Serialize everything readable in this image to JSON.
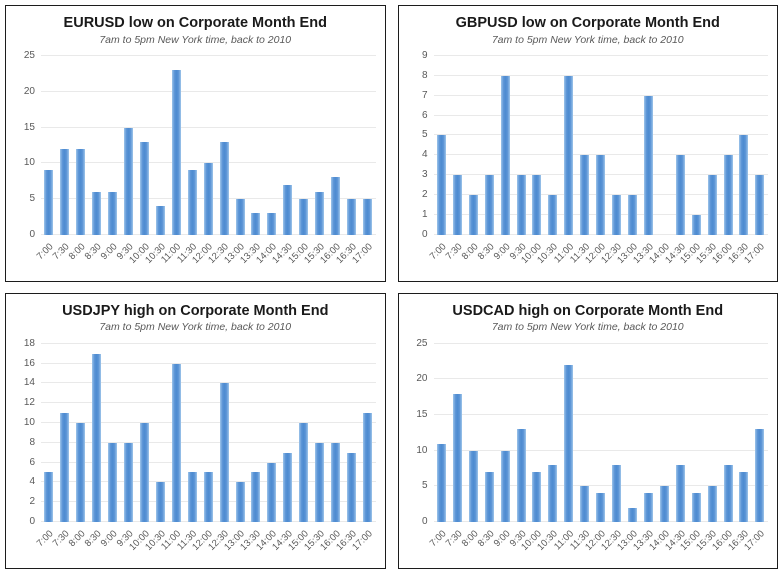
{
  "colors": {
    "bar_fill": "#4d8bd0",
    "bar_edge": "#9ec5ea",
    "gridline": "#e9e9e9",
    "title_text": "#1a1a1a",
    "subtitle_text": "#595959",
    "axis_text": "#595959",
    "panel_border": "#1c1c1c",
    "background": "#ffffff"
  },
  "chart_data": [
    {
      "type": "bar",
      "title": "EURUSD low on Corporate Month End",
      "subtitle": "7am to 5pm New York time, back to 2010",
      "categories": [
        "7:00",
        "7:30",
        "8:00",
        "8:30",
        "9:00",
        "9:30",
        "10:00",
        "10:30",
        "11:00",
        "11:30",
        "12:00",
        "12:30",
        "13:00",
        "13:30",
        "14:00",
        "14:30",
        "15:00",
        "15:30",
        "16:00",
        "16:30",
        "17:00"
      ],
      "values": [
        9,
        12,
        12,
        6,
        6,
        15,
        13,
        4,
        23,
        9,
        10,
        13,
        5,
        3,
        3,
        7,
        5,
        6,
        8,
        5,
        5
      ],
      "xlabel": "",
      "ylabel": "",
      "ylim": [
        0,
        25
      ],
      "ytick_step": 5,
      "grid": true,
      "legend_position": "none"
    },
    {
      "type": "bar",
      "title": "GBPUSD low on Corporate Month End",
      "subtitle": "7am to 5pm New York time, back to 2010",
      "categories": [
        "7:00",
        "7:30",
        "8:00",
        "8:30",
        "9:00",
        "9:30",
        "10:00",
        "10:30",
        "11:00",
        "11:30",
        "12:00",
        "12:30",
        "13:00",
        "13:30",
        "14:00",
        "14:30",
        "15:00",
        "15:30",
        "16:00",
        "16:30",
        "17:00"
      ],
      "values": [
        5,
        3,
        2,
        3,
        8,
        3,
        3,
        2,
        8,
        4,
        4,
        2,
        2,
        7,
        0,
        4,
        1,
        3,
        4,
        5,
        3
      ],
      "xlabel": "",
      "ylabel": "",
      "ylim": [
        0,
        9
      ],
      "ytick_step": 1,
      "grid": true,
      "legend_position": "none"
    },
    {
      "type": "bar",
      "title": "USDJPY high on Corporate Month End",
      "subtitle": "7am to 5pm New York time, back to 2010",
      "categories": [
        "7:00",
        "7:30",
        "8:00",
        "8:30",
        "9:00",
        "9:30",
        "10:00",
        "10:30",
        "11:00",
        "11:30",
        "12:00",
        "12:30",
        "13:00",
        "13:30",
        "14:00",
        "14:30",
        "15:00",
        "15:30",
        "16:00",
        "16:30",
        "17:00"
      ],
      "values": [
        5,
        11,
        10,
        17,
        8,
        8,
        10,
        4,
        16,
        5,
        5,
        14,
        4,
        5,
        6,
        7,
        10,
        8,
        8,
        7,
        11
      ],
      "xlabel": "",
      "ylabel": "",
      "ylim": [
        0,
        18
      ],
      "ytick_step": 2,
      "grid": true,
      "legend_position": "none"
    },
    {
      "type": "bar",
      "title": "USDCAD high on Corporate Month End",
      "subtitle": "7am to 5pm New York time, back to 2010",
      "categories": [
        "7:00",
        "7:30",
        "8:00",
        "8:30",
        "9:00",
        "9:30",
        "10:00",
        "10:30",
        "11:00",
        "11:30",
        "12:00",
        "12:30",
        "13:00",
        "13:30",
        "14:00",
        "14:30",
        "15:00",
        "15:30",
        "16:00",
        "16:30",
        "17:00"
      ],
      "values": [
        11,
        18,
        10,
        7,
        10,
        13,
        7,
        8,
        22,
        5,
        4,
        8,
        2,
        4,
        5,
        8,
        4,
        5,
        8,
        7,
        13
      ],
      "xlabel": "",
      "ylabel": "",
      "ylim": [
        0,
        25
      ],
      "ytick_step": 5,
      "grid": true,
      "legend_position": "none"
    }
  ]
}
